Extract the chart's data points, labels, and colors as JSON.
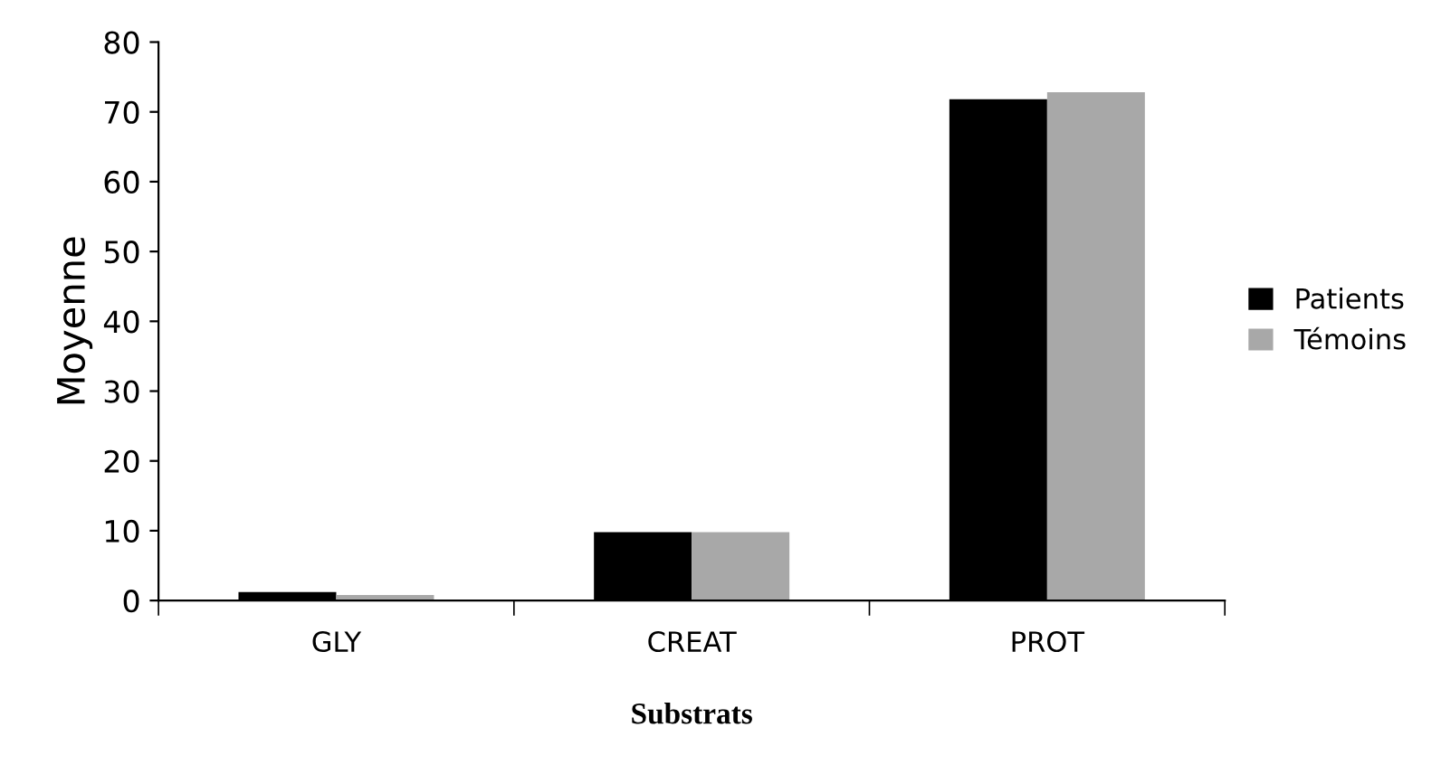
{
  "chart_data": {
    "type": "bar",
    "xlabel": "Substrats",
    "ylabel": "Moyenne",
    "categories": [
      "GLY",
      "CREAT",
      "PROT"
    ],
    "series": [
      {
        "name": "Patients",
        "color": "#000000",
        "values": [
          1.2,
          9.8,
          71.8
        ]
      },
      {
        "name": "Témoins",
        "color": "#a8a8a8",
        "values": [
          0.8,
          9.8,
          72.8
        ]
      }
    ],
    "ylim": [
      0,
      80
    ],
    "yticks": [
      0,
      10,
      20,
      30,
      40,
      50,
      60,
      70,
      80
    ],
    "grid": false,
    "legend": "right"
  }
}
